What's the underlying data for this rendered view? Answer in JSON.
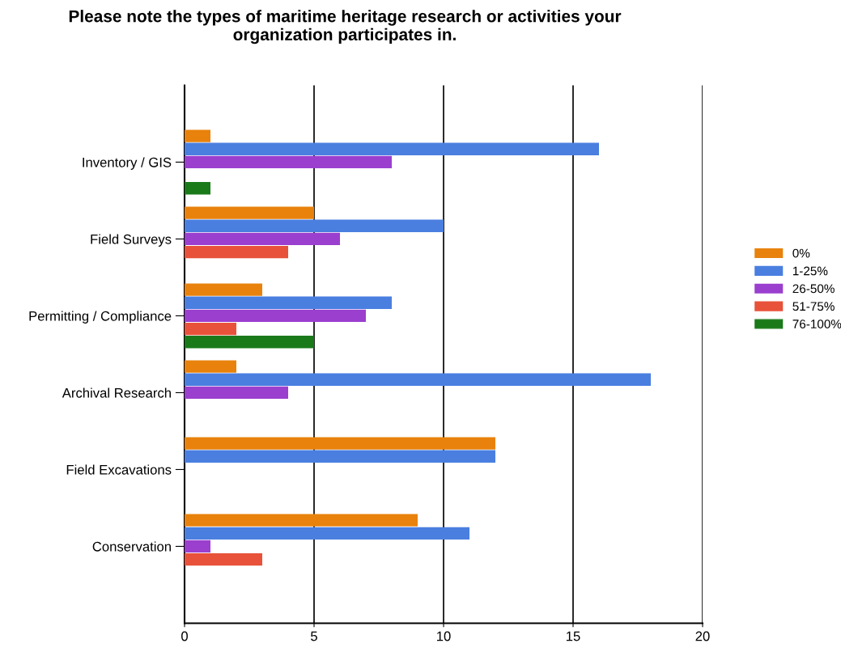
{
  "chart_data": {
    "type": "bar",
    "orientation": "horizontal",
    "title": "Please note the types of maritime heritage research or activities your\norganization participates in.",
    "categories": [
      "Inventory / GIS",
      "Field Surveys",
      "Permitting / Compliance",
      "Archival Research",
      "Field Excavations",
      "Conservation"
    ],
    "series": [
      {
        "name": "0%",
        "color": "#e8820c",
        "values": [
          1,
          5,
          3,
          2,
          12,
          9
        ]
      },
      {
        "name": "1-25%",
        "color": "#4a7fe0",
        "values": [
          16,
          10,
          8,
          18,
          12,
          11
        ]
      },
      {
        "name": "26-50%",
        "color": "#9b3fcf",
        "values": [
          8,
          6,
          7,
          4,
          0,
          1
        ]
      },
      {
        "name": "51-75%",
        "color": "#e8523a",
        "values": [
          0,
          4,
          2,
          0,
          0,
          3
        ]
      },
      {
        "name": "76-100%",
        "color": "#1a7a1a",
        "values": [
          1,
          0,
          5,
          0,
          0,
          0
        ]
      }
    ],
    "xlim": [
      0,
      20
    ],
    "xticks": [
      0,
      5,
      10,
      15,
      20
    ],
    "grid": "x",
    "legend": "right"
  }
}
